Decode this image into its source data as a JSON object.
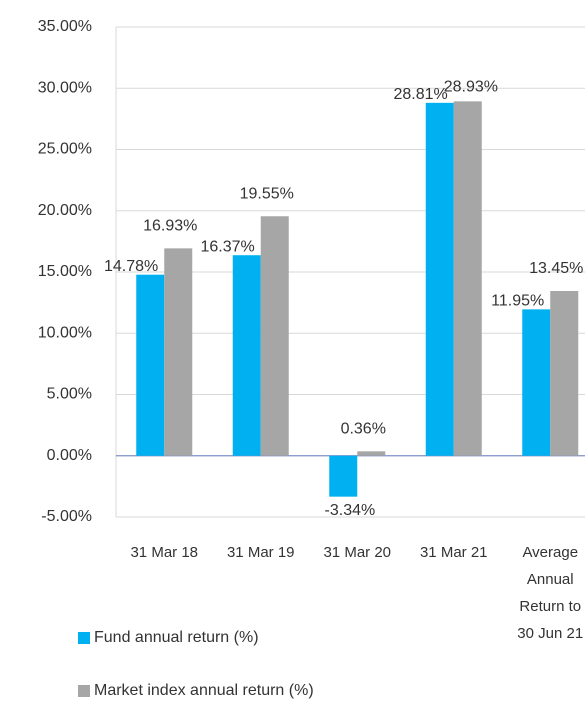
{
  "chart_data": {
    "type": "bar",
    "categories": [
      "31 Mar 18",
      "31 Mar 19",
      "31 Mar 20",
      "31 Mar 21",
      "Average Annual Return to 30 Jun 21"
    ],
    "series": [
      {
        "name": "Fund annual return (%)",
        "color": "#00b0f0",
        "values": [
          14.78,
          16.37,
          -3.34,
          28.81,
          11.95
        ],
        "value_labels": [
          "14.78%",
          "16.37%",
          "-3.34%",
          "28.81%",
          "11.95%"
        ]
      },
      {
        "name": "Market index annual return (%)",
        "color": "#a6a6a6",
        "values": [
          16.93,
          19.55,
          0.36,
          28.93,
          13.45
        ],
        "value_labels": [
          "16.93%",
          "19.55%",
          "0.36%",
          "28.93%",
          "13.45%"
        ]
      }
    ],
    "ylim": [
      -5,
      35
    ],
    "yticks": [
      {
        "value": -5,
        "label": "-5.00%"
      },
      {
        "value": 0,
        "label": "0.00%"
      },
      {
        "value": 5,
        "label": "5.00%"
      },
      {
        "value": 10,
        "label": "10.00%"
      },
      {
        "value": 15,
        "label": "15.00%"
      },
      {
        "value": 20,
        "label": "20.00%"
      },
      {
        "value": 25,
        "label": "25.00%"
      },
      {
        "value": 30,
        "label": "30.00%"
      },
      {
        "value": 35,
        "label": "35.00%"
      }
    ],
    "grid": true
  }
}
